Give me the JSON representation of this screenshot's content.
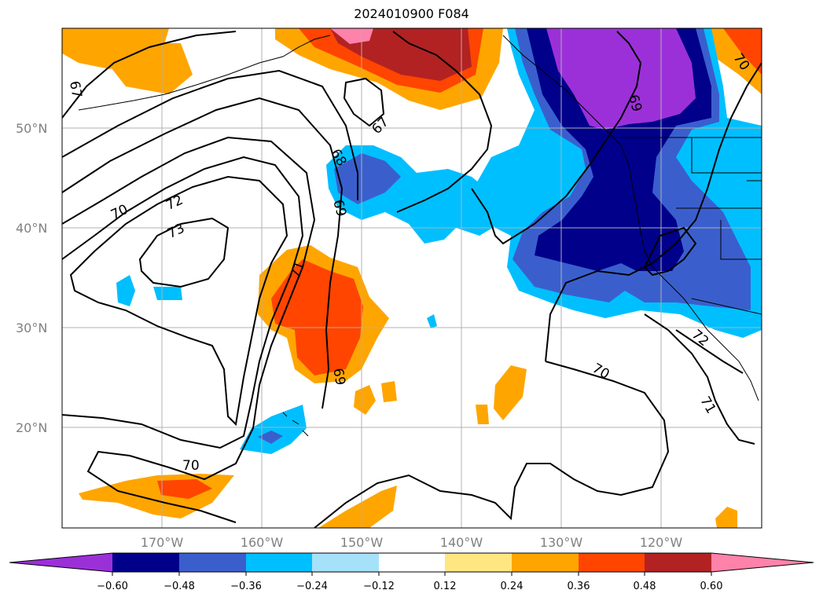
{
  "title": "2024010900 F084",
  "map": {
    "lat_labels": [
      "50°N",
      "40°N",
      "30°N",
      "20°N"
    ],
    "lon_labels": [
      "170°W",
      "160°W",
      "150°W",
      "140°W",
      "130°W",
      "120°W"
    ],
    "contour_labels": [
      "67",
      "67",
      "68",
      "69",
      "70",
      "72",
      "73",
      "71",
      "69",
      "70",
      "70",
      "71",
      "72",
      "69",
      "70"
    ]
  },
  "colorbar": {
    "ticks": [
      "−0.60",
      "−0.48",
      "−0.36",
      "−0.24",
      "−0.12",
      "0.12",
      "0.24",
      "0.36",
      "0.48",
      "0.60"
    ],
    "colors": {
      "extend_low": "#9b30d9",
      "n060": "#00008b",
      "n048": "#3a5fcd",
      "n036": "#00bfff",
      "n024": "#a6e1fa",
      "n012": "#ffffff",
      "p012": "#ffe680",
      "p024": "#ffa500",
      "p036": "#ff4500",
      "p048": "#b22222",
      "extend_high": "#ff82ab"
    }
  }
}
